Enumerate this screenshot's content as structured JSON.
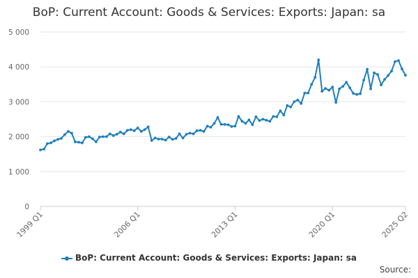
{
  "chart_data": {
    "type": "line",
    "title": "BoP: Current Account: Goods & Services: Exports: Japan: sa",
    "xlabel": "",
    "ylabel": "",
    "ylim": [
      0,
      5000
    ],
    "yticks": [
      0,
      1000,
      2000,
      3000,
      4000,
      5000
    ],
    "ytick_labels": [
      "0",
      "1 000",
      "2 000",
      "3 000",
      "4 000",
      "5 000"
    ],
    "xtick_labels": [
      "1999 Q1",
      "2006 Q1",
      "2013 Q1",
      "2020 Q1",
      "2025 Q2"
    ],
    "grid": true,
    "legend_position": "bottom-center",
    "color": "#1f7fbd",
    "series": [
      {
        "name": "BoP: Current Account: Goods & Services: Exports: Japan: sa",
        "values": [
          1620,
          1640,
          1800,
          1820,
          1880,
          1920,
          1950,
          2060,
          2150,
          2100,
          1850,
          1840,
          1820,
          1980,
          2000,
          1940,
          1850,
          1990,
          2000,
          2000,
          2080,
          2030,
          2070,
          2130,
          2080,
          2180,
          2200,
          2170,
          2250,
          2150,
          2200,
          2280,
          1890,
          1960,
          1930,
          1930,
          1900,
          1990,
          1920,
          1950,
          2080,
          1960,
          2070,
          2100,
          2080,
          2170,
          2180,
          2150,
          2300,
          2270,
          2380,
          2550,
          2350,
          2350,
          2340,
          2290,
          2300,
          2580,
          2440,
          2380,
          2480,
          2340,
          2570,
          2460,
          2500,
          2470,
          2440,
          2580,
          2570,
          2740,
          2620,
          2890,
          2850,
          3000,
          3050,
          2950,
          3250,
          3250,
          3500,
          3700,
          4200,
          3300,
          3380,
          3330,
          3420,
          2980,
          3370,
          3440,
          3560,
          3400,
          3240,
          3210,
          3230,
          3620,
          3930,
          3370,
          3830,
          3780,
          3480,
          3640,
          3750,
          3880,
          4150,
          4180,
          3940,
          3760
        ]
      }
    ],
    "source_label": "Source:"
  }
}
